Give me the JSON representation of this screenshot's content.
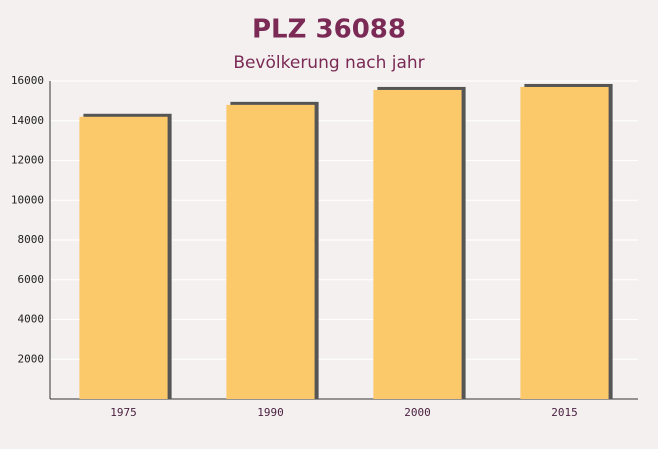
{
  "chart_data": {
    "type": "bar",
    "title": "PLZ 36088",
    "subtitle": "Bevölkerung nach jahr",
    "categories": [
      "1975",
      "1990",
      "2000",
      "2015"
    ],
    "values": [
      14200,
      14800,
      15550,
      15700
    ],
    "color": "#fbc96a",
    "ylim": [
      0,
      16000
    ],
    "yticks": [
      2000,
      4000,
      6000,
      8000,
      10000,
      12000,
      14000,
      16000
    ],
    "grid": true
  }
}
